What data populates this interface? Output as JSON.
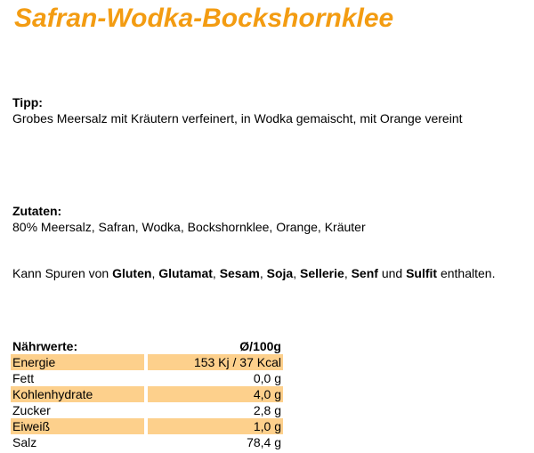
{
  "title": "Safran-Wodka-Bockshornklee",
  "tip": {
    "label": "Tipp:",
    "text": "Grobes Meersalz mit Kräutern verfeinert, in Wodka gemaischt, mit Orange vereint"
  },
  "ingredients": {
    "label": "Zutaten:",
    "text": "80% Meersalz, Safran, Wodka, Bockshornklee, Orange, Kräuter"
  },
  "allergens": [
    {
      "text": "Kann Spuren von ",
      "bold": false
    },
    {
      "text": "Gluten",
      "bold": true
    },
    {
      "text": ", ",
      "bold": false
    },
    {
      "text": "Glutamat",
      "bold": true
    },
    {
      "text": ", ",
      "bold": false
    },
    {
      "text": "Sesam",
      "bold": true
    },
    {
      "text": ", ",
      "bold": false
    },
    {
      "text": "Soja",
      "bold": true
    },
    {
      "text": ", ",
      "bold": false
    },
    {
      "text": "Sellerie",
      "bold": true
    },
    {
      "text": ", ",
      "bold": false
    },
    {
      "text": "Senf",
      "bold": true
    },
    {
      "text": " und ",
      "bold": false
    },
    {
      "text": "Sulfit",
      "bold": true
    },
    {
      "text": " enthalten.",
      "bold": false
    }
  ],
  "nutrition": {
    "header": [
      "Nährwerte:",
      "Ø/100g"
    ],
    "rows": [
      [
        "Energie",
        "153 Kj / 37 Kcal"
      ],
      [
        "Fett",
        "0,0 g"
      ],
      [
        "Kohlenhydrate",
        "4,0 g"
      ],
      [
        "Zucker",
        "2,8 g"
      ],
      [
        "Eiweiß",
        "1,0 g"
      ],
      [
        "Salz",
        "78,4 g"
      ]
    ]
  }
}
